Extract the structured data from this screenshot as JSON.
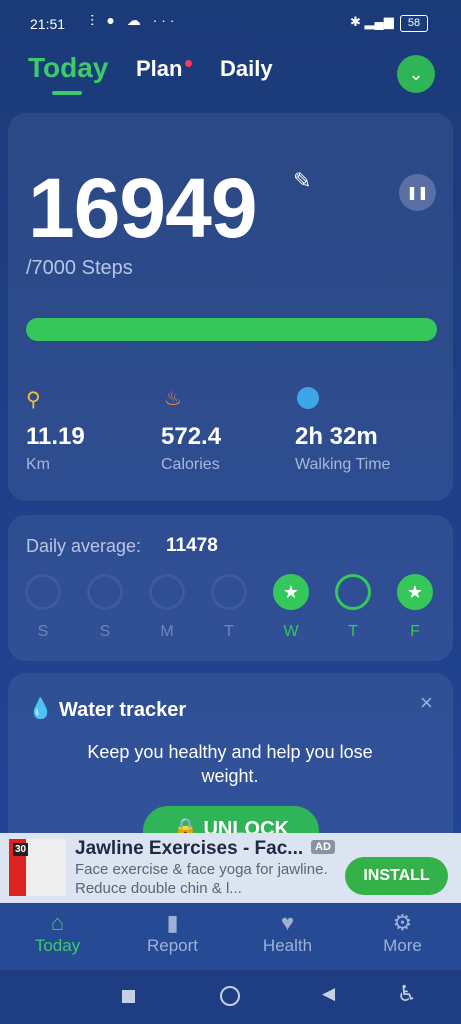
{
  "status_bar": {
    "time": "21:51",
    "battery": "58"
  },
  "tabs": [
    {
      "label": "Today"
    },
    {
      "label": "Plan"
    },
    {
      "label": "Daily"
    }
  ],
  "steps": {
    "count": "16949",
    "goal": "/7000 Steps"
  },
  "stats": [
    {
      "value": "11.19",
      "label": "Km"
    },
    {
      "value": "572.4",
      "label": "Calories"
    },
    {
      "value": "2h 32m",
      "label": "Walking Time"
    }
  ],
  "daily_average": {
    "label": "Daily average:",
    "value": "11478"
  },
  "week": [
    "S",
    "S",
    "M",
    "T",
    "W",
    "T",
    "F"
  ],
  "water_tracker": {
    "title": "Water tracker",
    "text": "Keep you healthy and help you lose weight.",
    "button": "UNLOCK"
  },
  "ad": {
    "icon_number": "30",
    "title": "Jawline Exercises - Fac...",
    "badge": "AD",
    "text": "Face exercise & face yoga for jawline. Reduce double chin & l...",
    "button": "INSTALL"
  },
  "nav": [
    {
      "label": "Today"
    },
    {
      "label": "Report"
    },
    {
      "label": "Health"
    },
    {
      "label": "More"
    }
  ]
}
